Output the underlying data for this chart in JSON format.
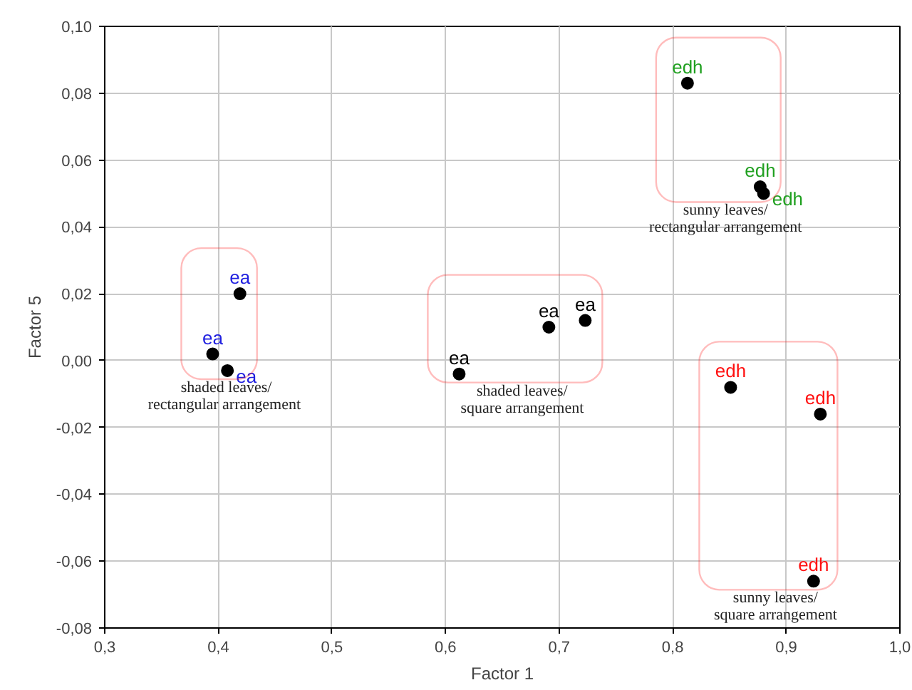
{
  "chart_data": {
    "type": "scatter",
    "xlabel": "Factor 1",
    "ylabel": "Factor 5",
    "marker": "circle",
    "grid": true,
    "xlim": [
      0.3,
      1.0
    ],
    "ylim": [
      -0.08,
      0.1
    ],
    "xticks": [
      {
        "value": 0.3,
        "label": "0,3"
      },
      {
        "value": 0.4,
        "label": "0,4"
      },
      {
        "value": 0.5,
        "label": "0,5"
      },
      {
        "value": 0.6,
        "label": "0,6"
      },
      {
        "value": 0.7,
        "label": "0,7"
      },
      {
        "value": 0.8,
        "label": "0,8"
      },
      {
        "value": 0.9,
        "label": "0,9"
      },
      {
        "value": 1.0,
        "label": "1,0"
      }
    ],
    "yticks": [
      {
        "value": -0.08,
        "label": "-0,08"
      },
      {
        "value": -0.06,
        "label": "-0,06"
      },
      {
        "value": -0.04,
        "label": "-0,04"
      },
      {
        "value": -0.02,
        "label": "-0,02"
      },
      {
        "value": 0.0,
        "label": "0,00"
      },
      {
        "value": 0.02,
        "label": "0,02"
      },
      {
        "value": 0.04,
        "label": "0,04"
      },
      {
        "value": 0.06,
        "label": "0,06"
      },
      {
        "value": 0.08,
        "label": "0,08"
      },
      {
        "value": 0.1,
        "label": "0,10"
      }
    ],
    "series": [
      {
        "name": "ea",
        "color": "#2020e0",
        "colors": [
          "#000000",
          "#000000",
          "#000000"
        ],
        "x": [
          0.419,
          0.395,
          0.408
        ],
        "values": [
          0.02,
          0.002,
          -0.003
        ]
      },
      {
        "name": "ea",
        "color": "#000000",
        "colors": [
          "#000000",
          "#000000",
          "#000000"
        ],
        "x": [
          0.612,
          0.691,
          0.723
        ],
        "values": [
          -0.004,
          0.01,
          0.012
        ]
      },
      {
        "name": "edh",
        "color": "#20a020",
        "colors": [
          "#000000",
          "#000000",
          "#000000"
        ],
        "x": [
          0.813,
          0.877,
          0.88
        ],
        "values": [
          0.083,
          0.052,
          0.05
        ]
      },
      {
        "name": "edh",
        "color": "#ff1010",
        "colors": [
          "#000000",
          "#000000",
          "#000000"
        ],
        "x": [
          0.851,
          0.93,
          0.924
        ],
        "values": [
          -0.008,
          -0.016,
          -0.066
        ]
      }
    ],
    "annotations": [
      "shaded leaves/\nrectangular  arrangement",
      "shaded leaves/\nsquare arrangement",
      "sunny leaves/\nrectangular arrangement",
      "sunny leaves/\nsquare arrangement"
    ]
  }
}
